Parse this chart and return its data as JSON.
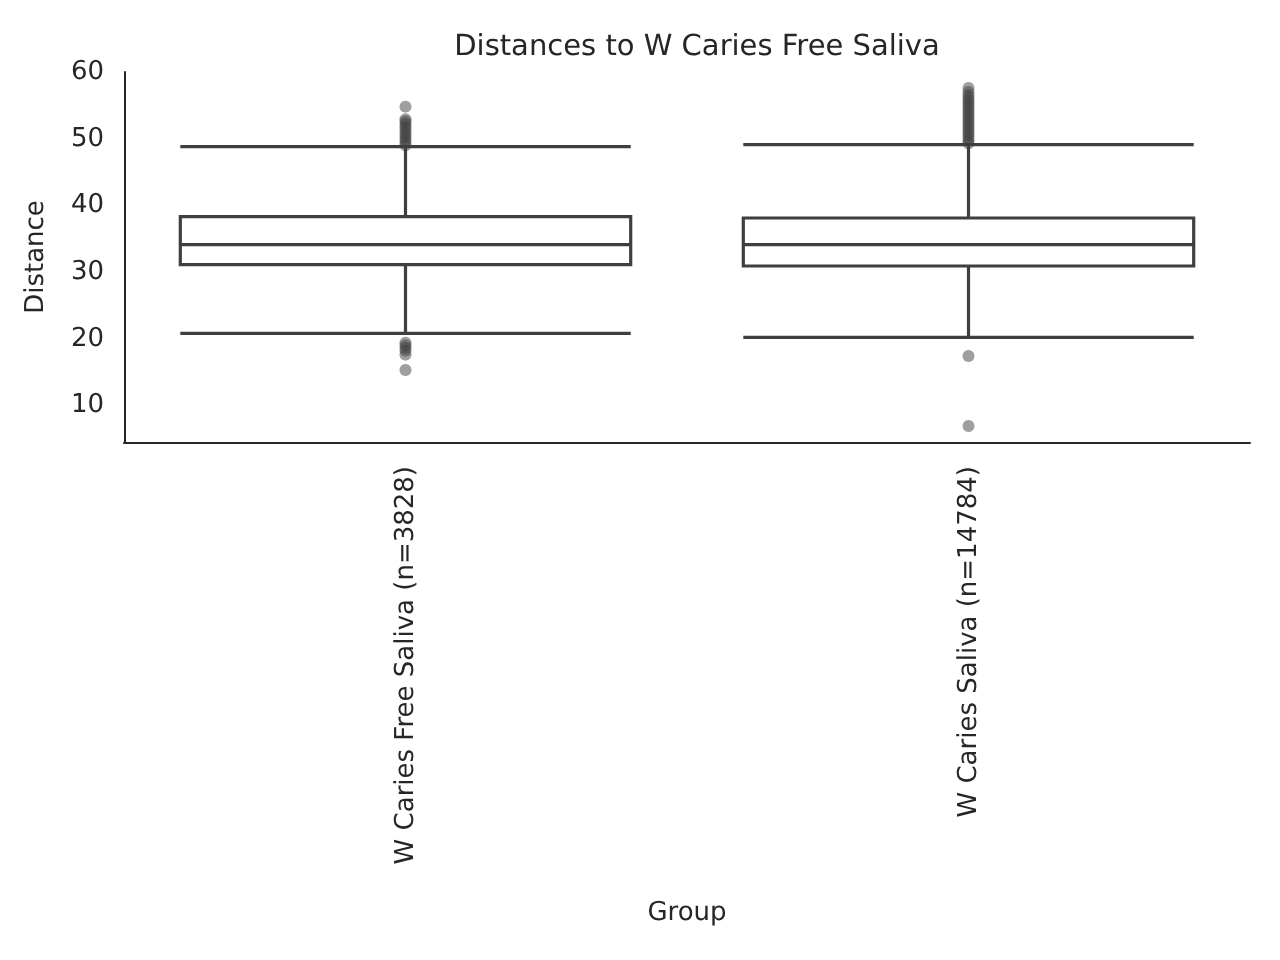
{
  "chart_data": {
    "type": "box",
    "title": "Distances to W Caries Free Saliva",
    "xlabel": "Group",
    "ylabel": "Distance",
    "categories": [
      "W Caries Free Saliva (n=3828)",
      "W Caries Saliva (n=14784)"
    ],
    "boxes": [
      {
        "low": 20.8,
        "q1": 31.1,
        "median": 34.1,
        "q3": 38.3,
        "high": 48.8,
        "outliers": [
          49.0,
          49.4,
          49.8,
          50.2,
          50.6,
          51.0,
          51.4,
          51.8,
          52.2,
          52.6,
          52.9,
          54.8,
          19.4,
          19.0,
          18.6,
          18.2,
          17.6,
          15.3
        ]
      },
      {
        "low": 20.2,
        "q1": 30.9,
        "median": 34.1,
        "q3": 38.1,
        "high": 49.1,
        "outliers": [
          49.3,
          49.7,
          50.1,
          50.5,
          50.9,
          51.3,
          51.7,
          52.1,
          52.5,
          52.9,
          53.3,
          53.7,
          54.1,
          54.5,
          54.9,
          55.3,
          55.7,
          56.1,
          56.5,
          57.0,
          57.6,
          17.4,
          6.9
        ]
      }
    ],
    "color": "#3f3f3f",
    "marker": "circle",
    "ylim": [
      4.5,
      60
    ],
    "yticks": [
      10,
      20,
      30,
      40,
      50,
      60
    ],
    "grid": false
  }
}
